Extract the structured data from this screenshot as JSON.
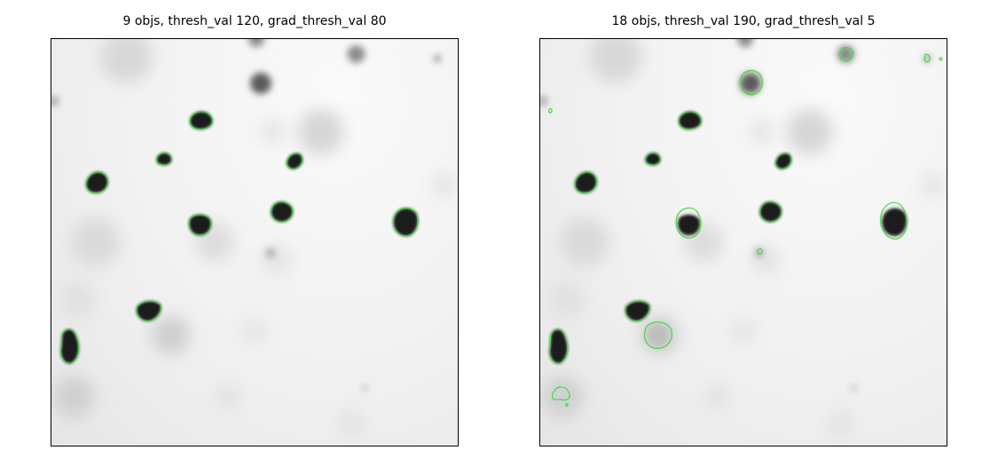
{
  "panels": [
    {
      "title": "9 objs, thresh_val 120, grad_thresh_val 80",
      "object_count": 9,
      "thresh_val": 120,
      "grad_thresh_val": 80
    },
    {
      "title": "18 objs, thresh_val 190, grad_thresh_val 5",
      "object_count": 18,
      "thresh_val": 190,
      "grad_thresh_val": 5
    }
  ],
  "colors": {
    "contour": "#3ddc3d",
    "background": "#f2f2f2"
  }
}
